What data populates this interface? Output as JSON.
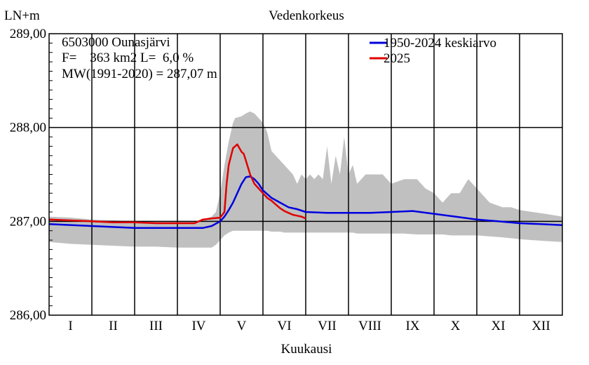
{
  "chart_data": {
    "type": "area",
    "title": "Vedenkorkeus",
    "ylabel": "LN+m",
    "xlabel": "Kuukausi",
    "ylim": [
      286.0,
      289.0
    ],
    "yticks": [
      286.0,
      287.0,
      288.0,
      289.0
    ],
    "ytick_labels": [
      "286,00",
      "287,00",
      "288,00",
      "289,00"
    ],
    "xlim": [
      0,
      12
    ],
    "months": [
      "I",
      "II",
      "III",
      "IV",
      "V",
      "VI",
      "VII",
      "VIII",
      "IX",
      "X",
      "XI",
      "XII"
    ],
    "grid": true,
    "legend_position": "top-right",
    "info_lines": [
      "6503000 Ounasjärvi",
      "F=    363 km2 L=  6,0 %",
      "MW(1991-2020) = 287,07 m"
    ],
    "colors": {
      "band": "#c0c0c0",
      "mean": "#0000e0",
      "current": "#e00000",
      "axes": "#000000"
    },
    "band": {
      "name": "",
      "x": [
        0.0,
        0.5,
        1.0,
        1.5,
        2.0,
        2.5,
        3.0,
        3.4,
        3.6,
        3.8,
        3.9,
        4.0,
        4.1,
        4.2,
        4.3,
        4.35,
        4.5,
        4.6,
        4.7,
        4.8,
        4.9,
        5.0,
        5.1,
        5.2,
        5.3,
        5.4,
        5.5,
        5.6,
        5.7,
        5.8,
        5.9,
        6.0,
        6.1,
        6.2,
        6.3,
        6.4,
        6.5,
        6.6,
        6.7,
        6.8,
        6.9,
        7.0,
        7.1,
        7.2,
        7.4,
        7.6,
        7.8,
        8.0,
        8.3,
        8.6,
        8.8,
        9.0,
        9.2,
        9.4,
        9.6,
        9.8,
        10.0,
        10.3,
        10.6,
        10.8,
        11.0,
        11.3,
        11.6,
        12.0
      ],
      "high": [
        287.05,
        287.04,
        287.02,
        287.01,
        287.0,
        287.0,
        287.0,
        287.0,
        287.02,
        287.05,
        287.1,
        287.3,
        287.6,
        287.85,
        288.05,
        288.1,
        288.12,
        288.15,
        288.17,
        288.15,
        288.1,
        288.05,
        287.95,
        287.75,
        287.7,
        287.65,
        287.6,
        287.55,
        287.5,
        287.4,
        287.5,
        287.45,
        287.5,
        287.45,
        287.5,
        287.45,
        287.8,
        287.4,
        287.7,
        287.5,
        287.9,
        287.5,
        287.6,
        287.4,
        287.5,
        287.5,
        287.5,
        287.4,
        287.45,
        287.45,
        287.35,
        287.3,
        287.2,
        287.3,
        287.3,
        287.45,
        287.35,
        287.2,
        287.15,
        287.15,
        287.12,
        287.1,
        287.08,
        287.05
      ],
      "low": [
        286.78,
        286.76,
        286.75,
        286.74,
        286.73,
        286.73,
        286.72,
        286.72,
        286.72,
        286.72,
        286.75,
        286.8,
        286.85,
        286.88,
        286.9,
        286.9,
        286.9,
        286.9,
        286.9,
        286.9,
        286.9,
        286.9,
        286.9,
        286.89,
        286.89,
        286.89,
        286.88,
        286.88,
        286.88,
        286.88,
        286.88,
        286.88,
        286.88,
        286.88,
        286.88,
        286.88,
        286.88,
        286.88,
        286.88,
        286.88,
        286.88,
        286.88,
        286.88,
        286.87,
        286.87,
        286.87,
        286.87,
        286.87,
        286.87,
        286.86,
        286.86,
        286.86,
        286.86,
        286.85,
        286.85,
        286.85,
        286.85,
        286.84,
        286.83,
        286.82,
        286.81,
        286.8,
        286.79,
        286.78
      ]
    },
    "series": [
      {
        "name": "1950-2024 keskiarvo",
        "x": [
          0.0,
          1.0,
          2.0,
          3.0,
          3.6,
          3.8,
          4.0,
          4.1,
          4.2,
          4.3,
          4.4,
          4.5,
          4.6,
          4.7,
          4.8,
          4.9,
          5.0,
          5.2,
          5.4,
          5.6,
          5.8,
          6.0,
          6.5,
          7.0,
          7.5,
          8.0,
          8.5,
          9.0,
          9.5,
          10.0,
          10.5,
          11.0,
          11.5,
          12.0
        ],
        "values": [
          286.97,
          286.95,
          286.93,
          286.93,
          286.93,
          286.95,
          287.0,
          287.05,
          287.12,
          287.2,
          287.3,
          287.4,
          287.47,
          287.48,
          287.45,
          287.4,
          287.33,
          287.25,
          287.2,
          287.15,
          287.13,
          287.1,
          287.09,
          287.09,
          287.09,
          287.1,
          287.11,
          287.08,
          287.05,
          287.02,
          287.0,
          286.98,
          286.97,
          286.96
        ]
      },
      {
        "name": "2025",
        "x": [
          0.0,
          0.5,
          1.0,
          1.5,
          2.0,
          2.5,
          3.0,
          3.4,
          3.6,
          3.8,
          4.0,
          4.1,
          4.15,
          4.2,
          4.3,
          4.4,
          4.5,
          4.55,
          4.6,
          4.7,
          4.8,
          4.9,
          5.0,
          5.1,
          5.2,
          5.3,
          5.4,
          5.5,
          5.6,
          5.7,
          5.8,
          5.9,
          6.0
        ],
        "values": [
          287.02,
          287.01,
          287.0,
          286.99,
          286.99,
          286.98,
          286.98,
          286.98,
          287.02,
          287.03,
          287.04,
          287.1,
          287.4,
          287.6,
          287.78,
          287.82,
          287.74,
          287.72,
          287.65,
          287.5,
          287.4,
          287.35,
          287.3,
          287.25,
          287.22,
          287.18,
          287.14,
          287.11,
          287.09,
          287.07,
          287.06,
          287.05,
          287.03
        ]
      }
    ]
  }
}
